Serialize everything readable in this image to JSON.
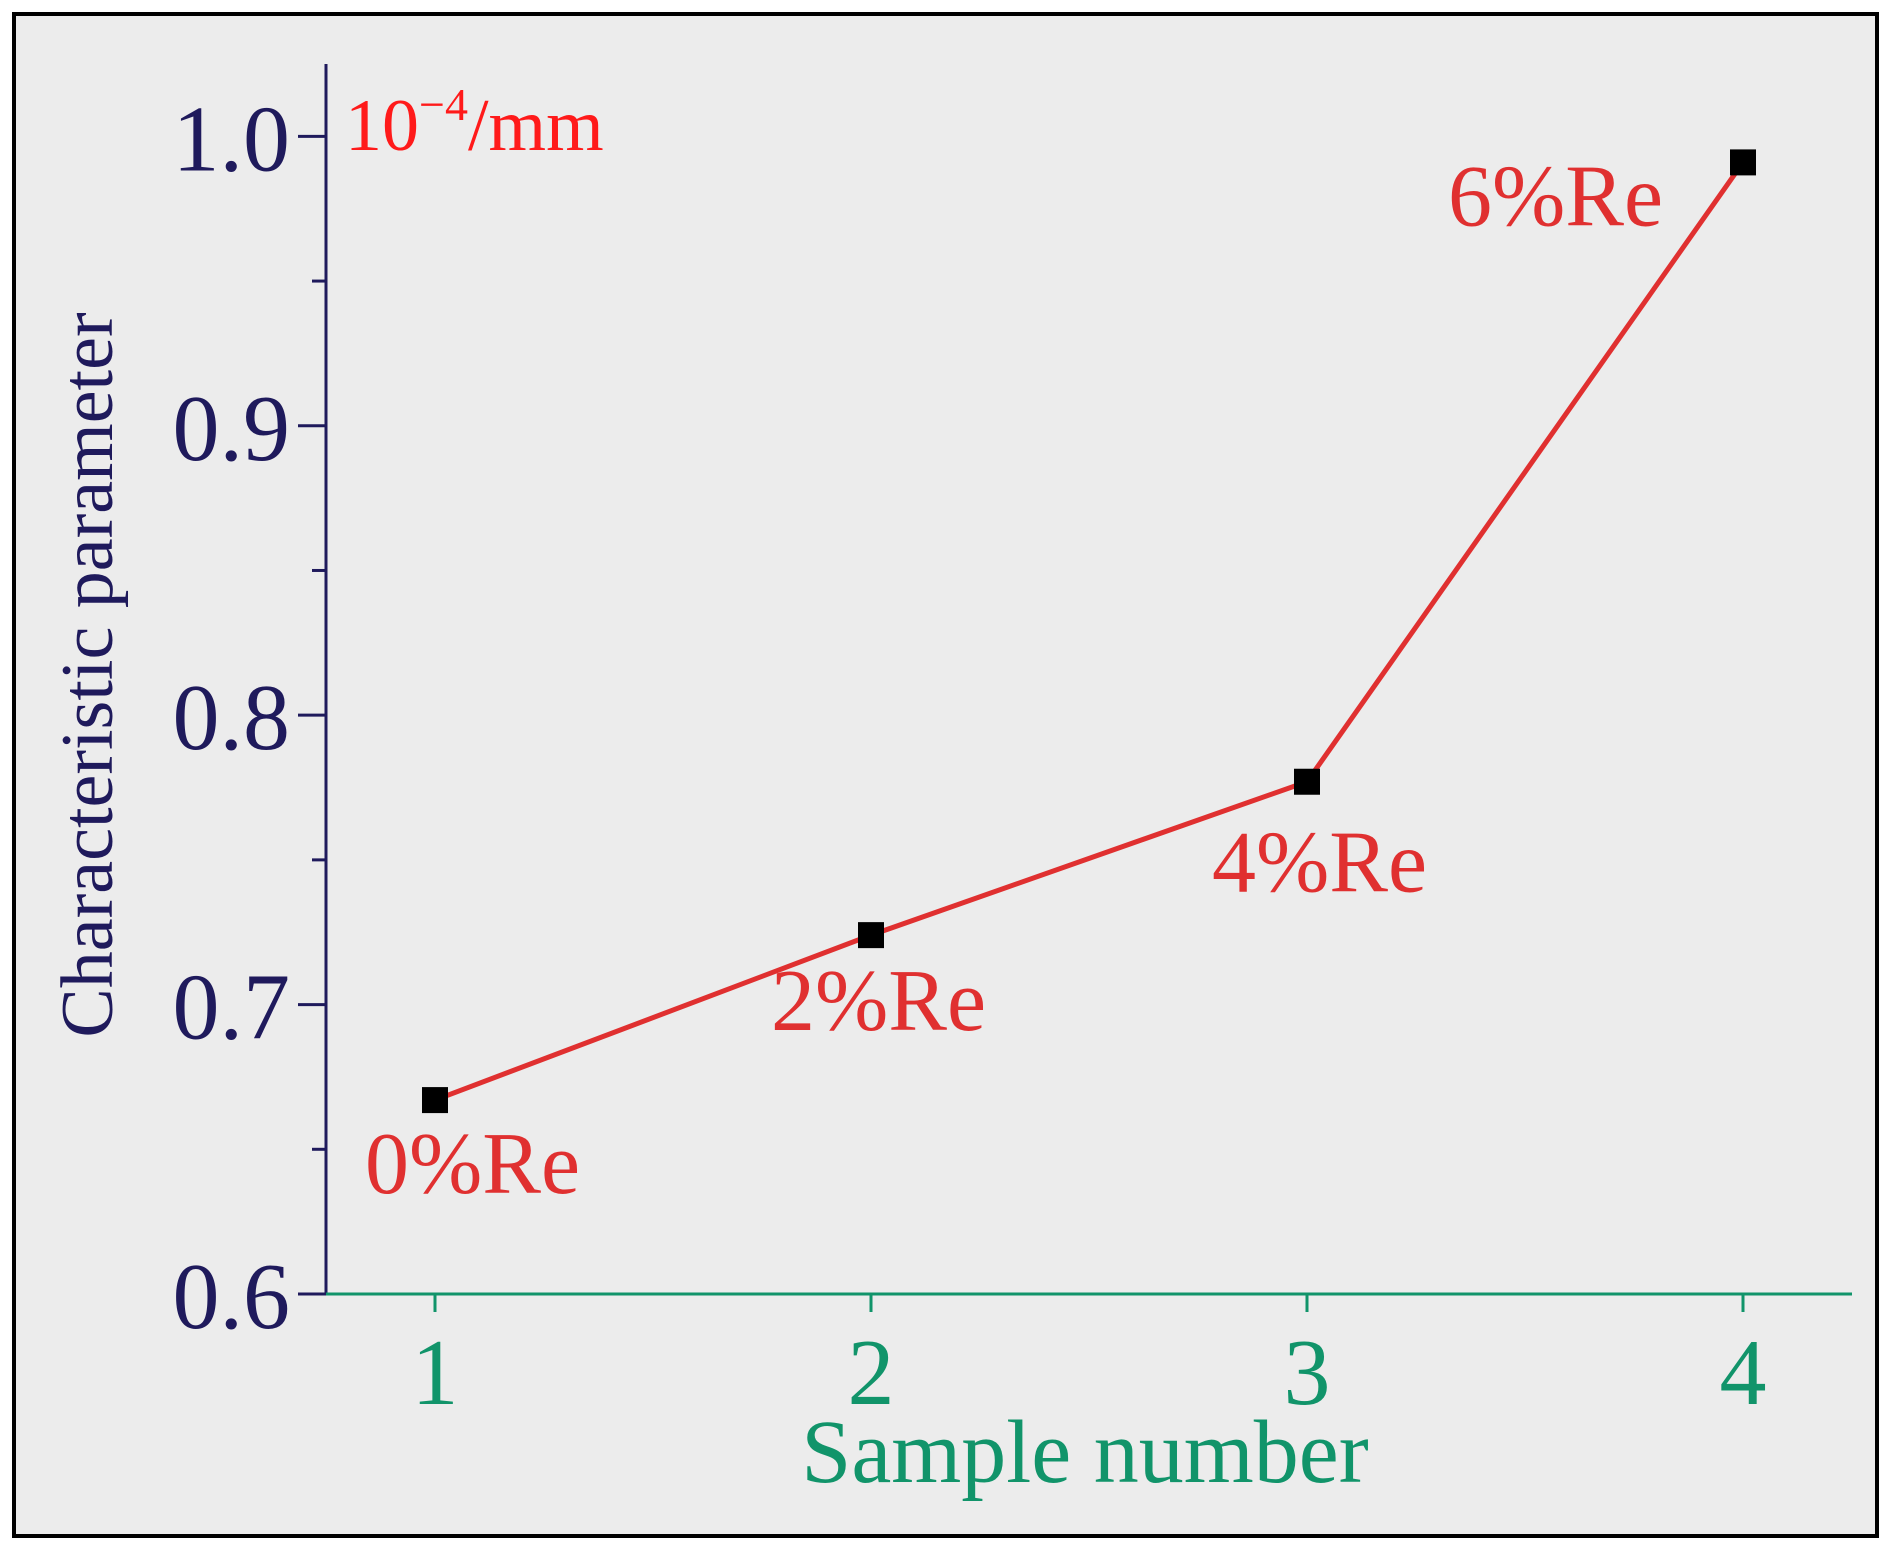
{
  "chart_data": {
    "type": "line",
    "title": "",
    "unit_label": {
      "base": "10",
      "exponent": "−4",
      "suffix": "/mm"
    },
    "xlabel": "Sample number",
    "ylabel": "Characteristic parameter",
    "x": [
      1,
      2,
      3,
      4
    ],
    "xlim": [
      0.75,
      4.25
    ],
    "x_tick_labels": [
      "1",
      "2",
      "3",
      "4"
    ],
    "ylim": [
      0.6,
      1.025
    ],
    "y_ticks": [
      0.6,
      0.7,
      0.8,
      0.9,
      1.0
    ],
    "y_tick_labels": [
      "0.6",
      "0.7",
      "0.8",
      "0.9",
      "1.0"
    ],
    "y_minor_ticks": [
      0.65,
      0.75,
      0.85,
      0.95
    ],
    "series": [
      {
        "values": [
          0.667,
          0.724,
          0.777,
          0.991
        ],
        "point_labels": [
          "0%Re",
          "2%Re",
          "4%Re",
          "6%Re"
        ]
      }
    ],
    "grid": false,
    "colors": {
      "background": "#ececec",
      "line": "#e03030",
      "marker": "#000000",
      "point_label": "#e03030",
      "unit_label": "#ff1a1a",
      "y_axis": "#1f1a5c",
      "x_axis": "#11946a",
      "frame": "#000000"
    }
  }
}
